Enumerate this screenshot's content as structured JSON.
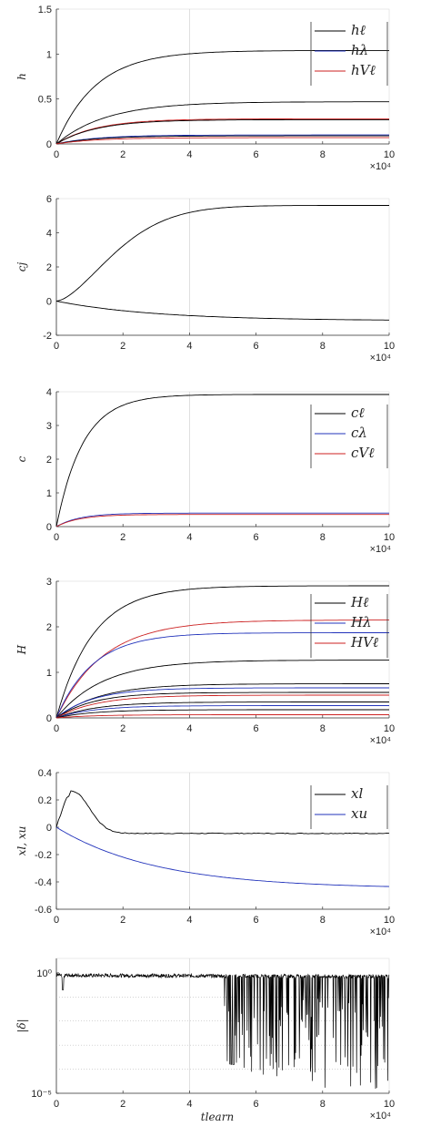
{
  "chart_data": [
    {
      "type": "line",
      "ylabel": "h",
      "xlim": [
        0,
        100000
      ],
      "ylim": [
        0,
        1.5
      ],
      "xticks": [
        "0",
        "2",
        "4",
        "6",
        "8",
        "10"
      ],
      "yticks": [
        "0",
        "0.5",
        "1",
        "1.5"
      ],
      "yticks_values": [
        0,
        0.5,
        1,
        1.5
      ],
      "x_exponent": "×10⁴",
      "legend": {
        "position": "top-right",
        "entries": [
          {
            "label": "hℓ",
            "color": "#000000"
          },
          {
            "label": "hλ",
            "color": "#2233bb"
          },
          {
            "label": "hVℓ",
            "color": "#cc2222"
          }
        ]
      },
      "series": [
        {
          "color": "#000000",
          "tau": 12000,
          "final": 1.04
        },
        {
          "color": "#000000",
          "tau": 15000,
          "final": 0.47
        },
        {
          "color": "#cc2222",
          "tau": 12000,
          "final": 0.28
        },
        {
          "color": "#000000",
          "tau": 12000,
          "final": 0.27
        },
        {
          "color": "#2233bb",
          "tau": 12000,
          "final": 0.1
        },
        {
          "color": "#000000",
          "tau": 12000,
          "final": 0.09
        },
        {
          "color": "#cc2222",
          "tau": 12000,
          "final": 0.07
        }
      ]
    },
    {
      "type": "line",
      "ylabel": "cj",
      "xlim": [
        0,
        100000
      ],
      "ylim": [
        -2,
        6
      ],
      "xticks": [
        "0",
        "2",
        "4",
        "6",
        "8",
        "10"
      ],
      "yticks": [
        "-2",
        "0",
        "2",
        "4",
        "6"
      ],
      "yticks_values": [
        -2,
        0,
        2,
        4,
        6
      ],
      "x_exponent": "×10⁴",
      "series": [
        {
          "color": "#000000",
          "shape": "sigmoid",
          "final": 5.6
        },
        {
          "color": "#000000",
          "tau": 30000,
          "final": -1.15
        }
      ]
    },
    {
      "type": "line",
      "ylabel": "c",
      "xlim": [
        0,
        100000
      ],
      "ylim": [
        0,
        4
      ],
      "xticks": [
        "0",
        "2",
        "4",
        "6",
        "8",
        "10"
      ],
      "yticks": [
        "0",
        "1",
        "2",
        "3",
        "4"
      ],
      "yticks_values": [
        0,
        1,
        2,
        3,
        4
      ],
      "x_exponent": "×10⁴",
      "legend": {
        "position": "top-right",
        "entries": [
          {
            "label": "cℓ",
            "color": "#000000"
          },
          {
            "label": "cλ",
            "color": "#2233bb"
          },
          {
            "label": "cVℓ",
            "color": "#cc2222"
          }
        ]
      },
      "series": [
        {
          "color": "#000000",
          "tau": 8000,
          "final": 3.92
        },
        {
          "color": "#2233bb",
          "tau": 7000,
          "final": 0.4
        },
        {
          "color": "#cc2222",
          "tau": 7000,
          "final": 0.36
        }
      ]
    },
    {
      "type": "line",
      "ylabel": "H",
      "xlim": [
        0,
        100000
      ],
      "ylim": [
        0,
        3
      ],
      "xticks": [
        "0",
        "2",
        "4",
        "6",
        "8",
        "10"
      ],
      "yticks": [
        "0",
        "1",
        "2",
        "3"
      ],
      "yticks_values": [
        0,
        1,
        2,
        3
      ],
      "x_exponent": "×10⁴",
      "legend": {
        "position": "top-right",
        "entries": [
          {
            "label": "Hℓ",
            "color": "#000000"
          },
          {
            "label": "Hλ",
            "color": "#2233bb"
          },
          {
            "label": "HVℓ",
            "color": "#cc2222"
          }
        ]
      },
      "series": [
        {
          "color": "#000000",
          "tau": 11000,
          "final": 2.9
        },
        {
          "color": "#cc2222",
          "tau": 14000,
          "final": 2.15
        },
        {
          "color": "#2233bb",
          "tau": 11000,
          "final": 1.87
        },
        {
          "color": "#000000",
          "tau": 14000,
          "final": 1.27
        },
        {
          "color": "#000000",
          "tau": 13000,
          "final": 0.75
        },
        {
          "color": "#2233bb",
          "tau": 11000,
          "final": 0.66
        },
        {
          "color": "#000000",
          "tau": 11000,
          "final": 0.56
        },
        {
          "color": "#cc2222",
          "tau": 12000,
          "final": 0.5
        },
        {
          "color": "#000000",
          "tau": 12000,
          "final": 0.35
        },
        {
          "color": "#2233bb",
          "tau": 11000,
          "final": 0.27
        },
        {
          "color": "#000000",
          "tau": 11000,
          "final": 0.18
        },
        {
          "color": "#cc2222",
          "tau": 11000,
          "final": 0.07
        }
      ]
    },
    {
      "type": "line",
      "ylabel": "xl, xu",
      "xlim": [
        0,
        100000
      ],
      "ylim": [
        -0.6,
        0.4
      ],
      "xticks": [
        "0",
        "2",
        "4",
        "6",
        "8",
        "10"
      ],
      "yticks": [
        "-0.6",
        "-0.4",
        "-0.2",
        "0",
        "0.2",
        "0.4"
      ],
      "yticks_values": [
        -0.6,
        -0.4,
        -0.2,
        0,
        0.2,
        0.4
      ],
      "x_exponent": "×10⁴",
      "legend": {
        "position": "top-right",
        "entries": [
          {
            "label": "xl",
            "color": "#000000"
          },
          {
            "label": "xu",
            "color": "#2233bb"
          }
        ]
      },
      "series": [
        {
          "color": "#000000",
          "shape": "bump",
          "peak": 0.26,
          "peak_x": 5000,
          "final": -0.045
        },
        {
          "color": "#2233bb",
          "tau": 30000,
          "final": -0.45
        }
      ]
    },
    {
      "type": "line",
      "ylabel": "|δ|",
      "xlabel": "tlearn",
      "yscale": "log",
      "xlim": [
        0,
        100000
      ],
      "ylim": [
        -5,
        0.6
      ],
      "xticks": [
        "0",
        "2",
        "4",
        "6",
        "8",
        "10"
      ],
      "yticks": [
        "10⁰",
        "10⁻⁵"
      ],
      "yticks_values": [
        0,
        -5
      ],
      "x_exponent": "×10⁴",
      "series": [
        {
          "color": "#000000",
          "shape": "noisy",
          "base_log": -0.1
        }
      ]
    }
  ]
}
